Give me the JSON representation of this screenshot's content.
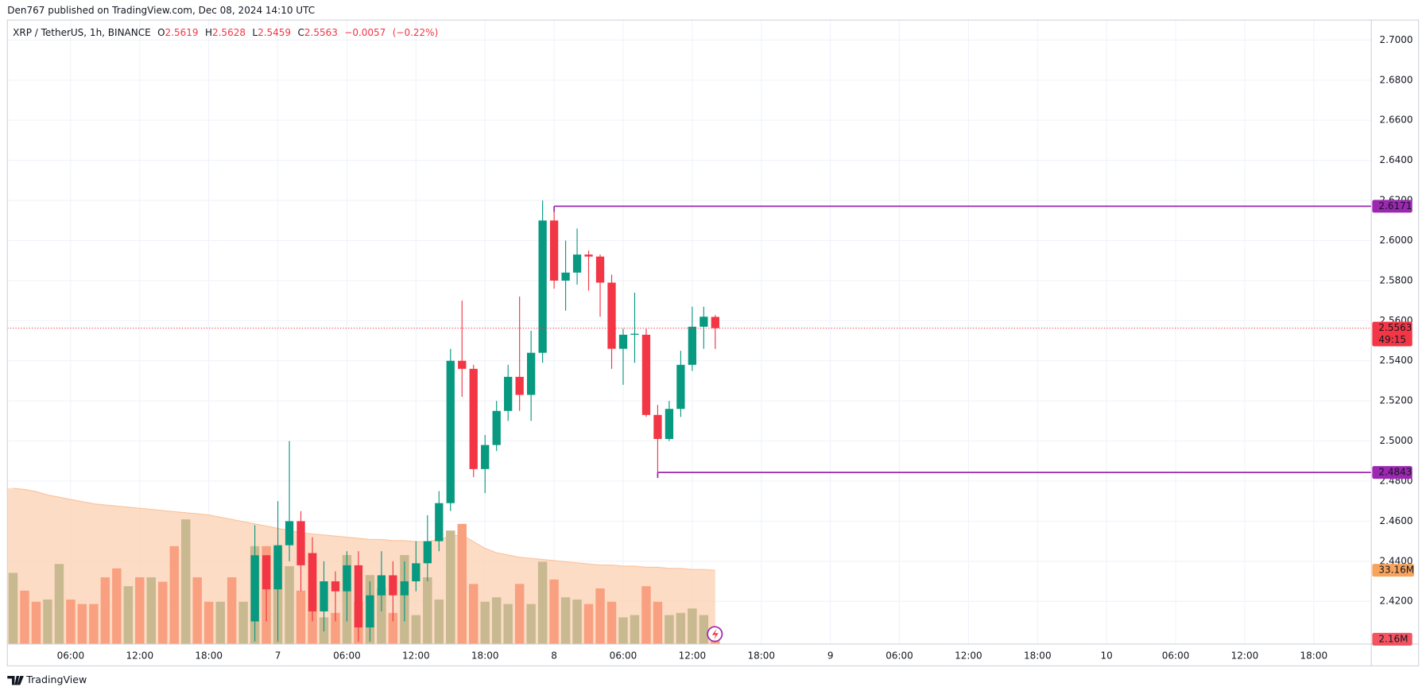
{
  "header": {
    "published": "Den767 published on TradingView.com, Dec 08, 2024 14:10 UTC"
  },
  "footer": {
    "logo": "TradingView"
  },
  "chart_data": {
    "type": "candlestick",
    "legend": {
      "symbol": "XRP / TetherUS, 1h, BINANCE",
      "labels": [
        "O",
        "H",
        "L",
        "C"
      ],
      "change": "−0.0057",
      "change_pct": "(−0.22%)"
    },
    "up_color": "#089981",
    "down_color": "#f23645",
    "candles": {
      "x": [
        22,
        23,
        24,
        25,
        26,
        27,
        28,
        29,
        30,
        31,
        32,
        33,
        34,
        35,
        36,
        37,
        38,
        39,
        40,
        41,
        42,
        43,
        44,
        45,
        46,
        47,
        48,
        49,
        50,
        51,
        52,
        53,
        54,
        55,
        56,
        57,
        58,
        59,
        60,
        61,
        62
      ],
      "open": [
        2.41,
        2.443,
        2.426,
        2.448,
        2.46,
        2.444,
        2.415,
        2.43,
        2.425,
        2.438,
        2.407,
        2.423,
        2.433,
        2.423,
        2.43,
        2.439,
        2.45,
        2.469,
        2.54,
        2.536,
        2.486,
        2.498,
        2.515,
        2.532,
        2.523,
        2.544,
        2.61,
        2.58,
        2.584,
        2.593,
        2.592,
        2.579,
        2.546,
        2.553,
        2.553,
        2.513,
        2.501,
        2.516,
        2.538,
        2.557,
        2.5619
      ],
      "high": [
        2.458,
        2.443,
        2.47,
        2.5,
        2.465,
        2.452,
        2.44,
        2.435,
        2.445,
        2.445,
        2.43,
        2.445,
        2.44,
        2.44,
        2.45,
        2.463,
        2.475,
        2.546,
        2.57,
        2.538,
        2.503,
        2.52,
        2.538,
        2.572,
        2.555,
        2.62,
        2.617,
        2.6,
        2.606,
        2.595,
        2.593,
        2.583,
        2.556,
        2.574,
        2.556,
        2.518,
        2.52,
        2.545,
        2.567,
        2.567,
        2.5628
      ],
      "low": [
        2.4,
        2.41,
        2.4,
        2.44,
        2.425,
        2.41,
        2.405,
        2.41,
        2.41,
        2.4,
        2.4,
        2.415,
        2.41,
        2.41,
        2.425,
        2.43,
        2.445,
        2.465,
        2.522,
        2.482,
        2.474,
        2.495,
        2.51,
        2.515,
        2.51,
        2.539,
        2.576,
        2.565,
        2.578,
        2.575,
        2.562,
        2.536,
        2.528,
        2.539,
        2.512,
        2.4843,
        2.5,
        2.512,
        2.535,
        2.546,
        2.5459
      ],
      "close": [
        2.443,
        2.426,
        2.448,
        2.46,
        2.438,
        2.415,
        2.43,
        2.425,
        2.438,
        2.407,
        2.423,
        2.433,
        2.423,
        2.43,
        2.439,
        2.45,
        2.469,
        2.54,
        2.536,
        2.486,
        2.498,
        2.515,
        2.532,
        2.523,
        2.544,
        2.61,
        2.58,
        2.584,
        2.593,
        2.592,
        2.579,
        2.546,
        2.553,
        2.5535,
        2.513,
        2.501,
        2.516,
        2.538,
        2.557,
        2.562,
        2.5563
      ]
    },
    "volume": {
      "x": [
        1,
        2,
        3,
        4,
        5,
        6,
        7,
        8,
        9,
        10,
        11,
        12,
        13,
        14,
        15,
        16,
        17,
        18,
        19,
        20,
        21,
        22,
        23,
        24,
        25,
        26,
        27,
        28,
        29,
        30,
        31,
        32,
        33,
        34,
        35,
        36,
        37,
        38,
        39,
        40,
        41,
        42,
        43,
        44,
        45,
        46,
        47,
        48,
        49,
        50,
        51,
        52,
        53,
        54,
        55,
        56,
        57,
        58,
        59,
        60,
        61,
        62
      ],
      "values": [
        32,
        24,
        19,
        20,
        36,
        20,
        18,
        18,
        30,
        34,
        26,
        30,
        30,
        28,
        44,
        56,
        30,
        19,
        19,
        30,
        19,
        44,
        44,
        44,
        35,
        24,
        41,
        12,
        14,
        40,
        19,
        31,
        25,
        14,
        40,
        13,
        30,
        20,
        51,
        54,
        27,
        19,
        21,
        18,
        27,
        18,
        37,
        29,
        21,
        20,
        18,
        25,
        19,
        12,
        13,
        26,
        19,
        13,
        14,
        16,
        13,
        2.16
      ],
      "up": [
        true,
        false,
        false,
        true,
        true,
        false,
        false,
        false,
        false,
        false,
        true,
        false,
        true,
        false,
        false,
        true,
        false,
        false,
        true,
        false,
        true,
        true,
        false,
        true,
        true,
        false,
        false,
        true,
        false,
        true,
        false,
        true,
        true,
        false,
        true,
        true,
        true,
        true,
        true,
        false,
        false,
        true,
        true,
        true,
        false,
        true,
        true,
        false,
        true,
        true,
        false,
        false,
        false,
        true,
        true,
        false,
        false,
        true,
        true,
        true,
        true,
        false
      ],
      "ma": [
        70,
        69.5,
        68.5,
        67,
        66,
        65,
        64,
        63,
        62.5,
        62,
        61.5,
        61,
        60.5,
        60,
        59.5,
        59,
        58.5,
        58,
        57,
        56,
        55,
        54,
        53,
        52,
        51,
        50,
        49.5,
        49,
        48.5,
        48,
        47.5,
        47,
        47,
        46.5,
        46.5,
        46,
        46,
        47,
        48.5,
        49,
        46,
        43,
        41,
        40,
        39,
        38.5,
        38,
        37.5,
        37,
        36.5,
        36,
        35.5,
        35.5,
        35,
        35,
        34.5,
        34.5,
        34,
        34,
        33.5,
        33.5,
        33.16
      ],
      "up_color": "#c8b991",
      "down_color": "#f9a080",
      "ma_color": "#fdd3b6",
      "ma_label": "33.16M",
      "volume_label": "2.16M"
    },
    "countdown": "49:15",
    "hlines": [
      {
        "value": 2.6171,
        "x": 48,
        "color": "#9c27b0"
      },
      {
        "value": 2.4843,
        "x": 57,
        "color": "#9c27b0"
      }
    ],
    "xlim": [
      0.5,
      119
    ],
    "ylim": [
      2.3987,
      2.71
    ],
    "grid": true,
    "yticks": [
      {
        "value": 2.42,
        "label": "2.4200"
      },
      {
        "value": 2.44,
        "label": "2.4400"
      },
      {
        "value": 2.46,
        "label": "2.4600"
      },
      {
        "value": 2.48,
        "label": "2.4800"
      },
      {
        "value": 2.5,
        "label": "2.5000"
      },
      {
        "value": 2.52,
        "label": "2.5200"
      },
      {
        "value": 2.54,
        "label": "2.5400"
      },
      {
        "value": 2.56,
        "label": "2.5600"
      },
      {
        "value": 2.58,
        "label": "2.5800"
      },
      {
        "value": 2.6,
        "label": "2.6000"
      },
      {
        "value": 2.62,
        "label": "2.6200"
      },
      {
        "value": 2.64,
        "label": "2.6400"
      },
      {
        "value": 2.66,
        "label": "2.6600"
      },
      {
        "value": 2.68,
        "label": "2.6800"
      },
      {
        "value": 2.7,
        "label": "2.7000"
      }
    ],
    "xticks": [
      {
        "value": 6,
        "label": "06:00"
      },
      {
        "value": 12,
        "label": "12:00"
      },
      {
        "value": 18,
        "label": "18:00"
      },
      {
        "value": 24,
        "label": "7"
      },
      {
        "value": 30,
        "label": "06:00"
      },
      {
        "value": 36,
        "label": "12:00"
      },
      {
        "value": 42,
        "label": "18:00"
      },
      {
        "value": 48,
        "label": "8"
      },
      {
        "value": 54,
        "label": "06:00"
      },
      {
        "value": 60,
        "label": "12:00"
      },
      {
        "value": 66,
        "label": "18:00"
      },
      {
        "value": 72,
        "label": "9"
      },
      {
        "value": 78,
        "label": "06:00"
      },
      {
        "value": 84,
        "label": "12:00"
      },
      {
        "value": 90,
        "label": "18:00"
      },
      {
        "value": 96,
        "label": "10"
      },
      {
        "value": 102,
        "label": "06:00"
      },
      {
        "value": 108,
        "label": "12:00"
      },
      {
        "value": 114,
        "label": "18:00"
      }
    ]
  }
}
